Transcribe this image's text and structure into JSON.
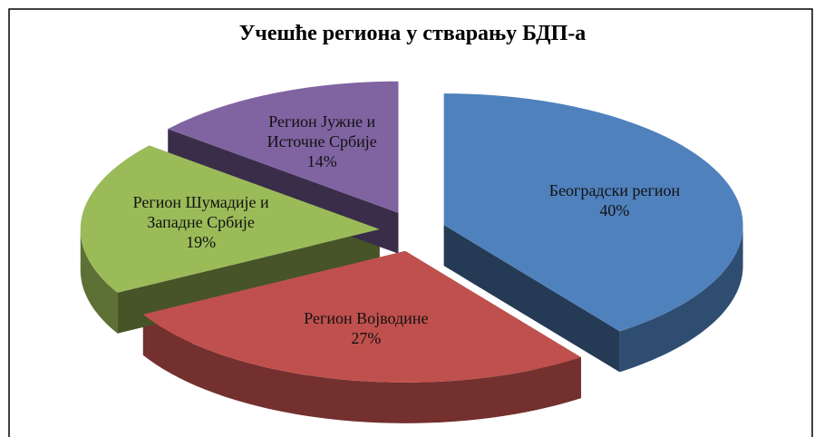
{
  "chart_data": {
    "type": "pie",
    "title": "Учешће региона у стварању БДП-а",
    "categories": [
      "Београдски регион",
      "Регион Војводине",
      "Регион Шумадије и Западне Србије",
      "Регион Јужне и Источне Србије"
    ],
    "values": [
      40,
      27,
      19,
      14
    ],
    "value_labels": [
      "40%",
      "27%",
      "19%",
      "14%"
    ],
    "colors": [
      "#4f81bd",
      "#c0504d",
      "#9bbb59",
      "#8064a2"
    ]
  }
}
